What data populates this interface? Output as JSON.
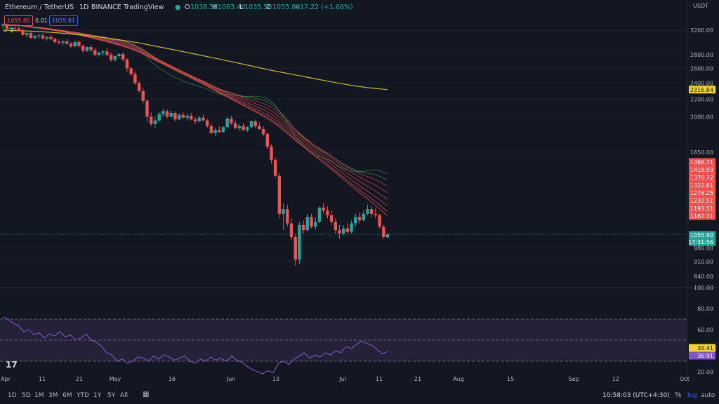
{
  "header": {
    "symbol": "Ethereum / TetherUS",
    "interval": "1D",
    "exchange": "BINANCE",
    "source": "TradingView",
    "o_label": "O",
    "o_value": "1038.58",
    "h_label": "H",
    "h_value": "1063.40",
    "l_label": "L",
    "l_value": "1035.58",
    "c_label": "C",
    "c_value": "1055.80",
    "change": "+17.22 (+1.66%)",
    "sell_price": "1055.80",
    "spread": "0.01",
    "buy_price": "1055.81",
    "indicator_count": "2",
    "currency": "USDT"
  },
  "price_axis": {
    "ticks": [
      "3200.00",
      "2800.00",
      "2600.00",
      "2400.00",
      "2200.00",
      "2000.00",
      "1650.00",
      "980.00",
      "910.00",
      "840.00"
    ],
    "ema200_label": "2316.84",
    "ribbon_labels": [
      "1466.71",
      "1418.93",
      "1370.72",
      "1322.81",
      "1276.25",
      "1232.51",
      "1193.51",
      "1167.21"
    ],
    "last_price": "1055.80",
    "countdown": "17:31:56"
  },
  "rsi_axis": {
    "ticks": [
      "100.00",
      "80.00",
      "60.00",
      "20.00"
    ],
    "rsi_value": "39.41",
    "rsi_ma_value": "36.91"
  },
  "time_axis": {
    "labels": [
      "Apr",
      "11",
      "21",
      "May",
      "16",
      "Jun",
      "13",
      "Jul",
      "11",
      "21",
      "Aug",
      "15",
      "Sep",
      "12",
      "Oct"
    ]
  },
  "bottom_toolbar": {
    "ranges": [
      "1D",
      "5D",
      "1M",
      "3M",
      "6M",
      "YTD",
      "1Y",
      "5Y",
      "All"
    ],
    "clock": "10:58:03 (UTC+4:30)",
    "percent": "%",
    "log": "log",
    "auto": "auto"
  },
  "colors": {
    "background": "#131722",
    "up": "#26a69a",
    "down": "#ef5350",
    "ema200": "#c9b933",
    "rsi_line": "#7e57c2",
    "rsi_band": "#2a2440",
    "last_price_bg": "#26a69a"
  },
  "chart_data": {
    "type": "candlestick",
    "price_scale": "log",
    "ylim": [
      840,
      3300
    ],
    "candles_ohlc": [
      [
        3280,
        3320,
        3230,
        3300
      ],
      [
        3300,
        3320,
        3200,
        3220
      ],
      [
        3220,
        3260,
        3190,
        3240
      ],
      [
        3240,
        3270,
        3200,
        3230
      ],
      [
        3230,
        3280,
        3180,
        3190
      ],
      [
        3190,
        3230,
        3100,
        3120
      ],
      [
        3120,
        3160,
        3070,
        3150
      ],
      [
        3150,
        3180,
        3050,
        3070
      ],
      [
        3070,
        3120,
        3040,
        3100
      ],
      [
        3100,
        3140,
        3060,
        3110
      ],
      [
        3110,
        3150,
        3040,
        3060
      ],
      [
        3060,
        3100,
        3020,
        3080
      ],
      [
        3080,
        3120,
        3030,
        3050
      ],
      [
        3050,
        3070,
        2980,
        3000
      ],
      [
        3000,
        3040,
        2960,
        2990
      ],
      [
        2990,
        3030,
        2950,
        3010
      ],
      [
        3010,
        3050,
        2960,
        2970
      ],
      [
        2970,
        3000,
        2900,
        2930
      ],
      [
        2930,
        3020,
        2920,
        3000
      ],
      [
        3000,
        3030,
        2910,
        2940
      ],
      [
        2940,
        2960,
        2830,
        2860
      ],
      [
        2860,
        2930,
        2840,
        2920
      ],
      [
        2920,
        2950,
        2840,
        2870
      ],
      [
        2870,
        2900,
        2780,
        2800
      ],
      [
        2800,
        2850,
        2770,
        2830
      ],
      [
        2830,
        2880,
        2790,
        2850
      ],
      [
        2850,
        2900,
        2780,
        2800
      ],
      [
        2800,
        2840,
        2700,
        2720
      ],
      [
        2720,
        2790,
        2690,
        2780
      ],
      [
        2780,
        2830,
        2750,
        2810
      ],
      [
        2810,
        2840,
        2700,
        2730
      ],
      [
        2730,
        2750,
        2550,
        2600
      ],
      [
        2600,
        2620,
        2500,
        2520
      ],
      [
        2520,
        2560,
        2380,
        2400
      ],
      [
        2400,
        2430,
        2280,
        2300
      ],
      [
        2300,
        2340,
        2150,
        2180
      ],
      [
        2180,
        2200,
        1950,
        2000
      ],
      [
        2000,
        2050,
        1900,
        1920
      ],
      [
        1920,
        2000,
        1880,
        1960
      ],
      [
        1960,
        2050,
        1940,
        2030
      ],
      [
        2030,
        2090,
        2000,
        2060
      ],
      [
        2060,
        2080,
        1980,
        2000
      ],
      [
        2000,
        2070,
        1990,
        2040
      ],
      [
        2040,
        2060,
        1950,
        1970
      ],
      [
        1970,
        2040,
        1960,
        2020
      ],
      [
        2020,
        2050,
        1980,
        1990
      ],
      [
        1990,
        2030,
        1960,
        2010
      ],
      [
        2010,
        2040,
        1960,
        1970
      ],
      [
        1970,
        2000,
        1920,
        1950
      ],
      [
        1950,
        2010,
        1940,
        1990
      ],
      [
        1990,
        2030,
        1950,
        1960
      ],
      [
        1960,
        1980,
        1880,
        1900
      ],
      [
        1900,
        1930,
        1820,
        1830
      ],
      [
        1830,
        1880,
        1800,
        1860
      ],
      [
        1860,
        1900,
        1830,
        1840
      ],
      [
        1840,
        1900,
        1830,
        1890
      ],
      [
        1890,
        2000,
        1880,
        1980
      ],
      [
        1980,
        2010,
        1910,
        1930
      ],
      [
        1930,
        1960,
        1870,
        1880
      ],
      [
        1880,
        1920,
        1850,
        1900
      ],
      [
        1900,
        1930,
        1850,
        1860
      ],
      [
        1860,
        1900,
        1840,
        1890
      ],
      [
        1890,
        1960,
        1880,
        1950
      ],
      [
        1950,
        1970,
        1880,
        1900
      ],
      [
        1900,
        1940,
        1860,
        1870
      ],
      [
        1870,
        1900,
        1800,
        1820
      ],
      [
        1820,
        1840,
        1680,
        1700
      ],
      [
        1700,
        1720,
        1550,
        1580
      ],
      [
        1580,
        1600,
        1440,
        1450
      ],
      [
        1450,
        1470,
        1150,
        1180
      ],
      [
        1180,
        1250,
        1080,
        1210
      ],
      [
        1210,
        1240,
        1100,
        1120
      ],
      [
        1120,
        1150,
        1020,
        1040
      ],
      [
        1040,
        1060,
        890,
        920
      ],
      [
        920,
        1130,
        900,
        1110
      ],
      [
        1110,
        1140,
        1060,
        1080
      ],
      [
        1080,
        1180,
        1070,
        1160
      ],
      [
        1160,
        1180,
        1090,
        1100
      ],
      [
        1100,
        1160,
        1080,
        1130
      ],
      [
        1130,
        1230,
        1120,
        1220
      ],
      [
        1220,
        1250,
        1180,
        1200
      ],
      [
        1200,
        1230,
        1150,
        1170
      ],
      [
        1170,
        1200,
        1110,
        1130
      ],
      [
        1130,
        1150,
        1060,
        1080
      ],
      [
        1080,
        1110,
        1030,
        1060
      ],
      [
        1060,
        1110,
        1050,
        1090
      ],
      [
        1090,
        1120,
        1060,
        1070
      ],
      [
        1070,
        1140,
        1060,
        1120
      ],
      [
        1120,
        1180,
        1100,
        1160
      ],
      [
        1160,
        1190,
        1120,
        1140
      ],
      [
        1140,
        1200,
        1130,
        1180
      ],
      [
        1180,
        1240,
        1170,
        1210
      ],
      [
        1210,
        1230,
        1160,
        1180
      ],
      [
        1180,
        1220,
        1150,
        1170
      ],
      [
        1170,
        1180,
        1090,
        1100
      ],
      [
        1100,
        1110,
        1030,
        1040
      ],
      [
        1038.58,
        1063.4,
        1035.58,
        1055.8
      ]
    ],
    "ema200": [
      3200,
      3190,
      3175,
      3150,
      3120,
      3085,
      3040,
      2990,
      2930,
      2870,
      2810,
      2750,
      2690,
      2630,
      2570,
      2520,
      2470,
      2420,
      2375,
      2340,
      2316.84
    ],
    "ribbon_end_values": [
      1466.71,
      1418.93,
      1370.72,
      1322.81,
      1276.25,
      1232.51,
      1193.51,
      1167.21
    ],
    "rsi": [
      72,
      70,
      66,
      64,
      58,
      60,
      55,
      57,
      52,
      56,
      54,
      58,
      53,
      55,
      50,
      52,
      56,
      50,
      48,
      44,
      38,
      36,
      30,
      32,
      28,
      30,
      34,
      33,
      30,
      35,
      32,
      36,
      34,
      31,
      33,
      35,
      30,
      28,
      32,
      30,
      34,
      31,
      33,
      30,
      35,
      31,
      29,
      25,
      22,
      20,
      18,
      21,
      19,
      28,
      30,
      27,
      32,
      35,
      38,
      33,
      36,
      34,
      38,
      36,
      40,
      38,
      44,
      42,
      46,
      49,
      47,
      45,
      41,
      37,
      39.41
    ],
    "rsi_ylim": [
      20,
      100
    ],
    "rsi_band": [
      30,
      70
    ]
  }
}
